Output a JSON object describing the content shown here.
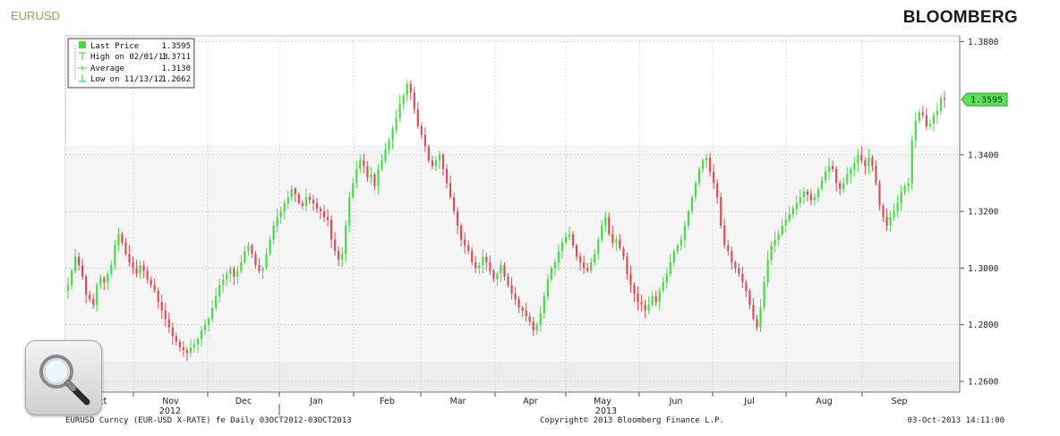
{
  "header": {
    "ticker": "EURUSD",
    "brand": "BLOOMBERG"
  },
  "legend": {
    "rows": [
      {
        "label": "Last Price",
        "value": "1.3595"
      },
      {
        "label": "High on 02/01/13",
        "value": "1.3711"
      },
      {
        "label": "Average",
        "value": "1.3130"
      },
      {
        "label": "Low on 11/13/12",
        "value": "1.2662"
      }
    ]
  },
  "last_price_tag": "1.3595",
  "footer": {
    "left": "EURUSD Curncy (EUR-USD X-RATE) fe  Daily 03OCT2012-03OCT2013",
    "mid": "Copyright© 2013 Bloomberg Finance L.P.",
    "right": "03-Oct-2013 14:11:00"
  },
  "colors": {
    "up": "#4cd84a",
    "down": "#d8505a",
    "accent": "#7ab63a",
    "tag": "#5ee05a"
  },
  "icons": {
    "zoom": "magnifier-icon"
  },
  "chart_data": {
    "type": "line",
    "title": "",
    "xlabel": "",
    "ylabel": "",
    "ylim": [
      1.2562,
      1.382
    ],
    "yticks": [
      "1.3800",
      "1.3400",
      "1.3200",
      "1.3000",
      "1.2800",
      "1.2600"
    ],
    "months": [
      "Oct",
      "Nov",
      "Dec",
      "Jan",
      "Feb",
      "Mar",
      "Apr",
      "May",
      "Jun",
      "Jul",
      "Aug",
      "Sep"
    ],
    "year_labels": [
      "2012",
      "2013"
    ],
    "grid": true,
    "legend_position": "top-left",
    "series": [
      {
        "name": "Last Price",
        "values": [
          1.294,
          1.299,
          1.304,
          1.301,
          1.297,
          1.2905,
          1.289,
          1.287,
          1.294,
          1.2965,
          1.295,
          1.298,
          1.301,
          1.308,
          1.312,
          1.309,
          1.305,
          1.302,
          1.3,
          1.298,
          1.301,
          1.299,
          1.296,
          1.294,
          1.292,
          1.288,
          1.285,
          1.282,
          1.279,
          1.276,
          1.274,
          1.272,
          1.271,
          1.27,
          1.272,
          1.273,
          1.275,
          1.278,
          1.28,
          1.282,
          1.286,
          1.29,
          1.294,
          1.296,
          1.298,
          1.3,
          1.297,
          1.299,
          1.302,
          1.306,
          1.308,
          1.305,
          1.301,
          1.299,
          1.3,
          1.305,
          1.31,
          1.315,
          1.318,
          1.32,
          1.323,
          1.325,
          1.328,
          1.326,
          1.323,
          1.322,
          1.325,
          1.324,
          1.323,
          1.321,
          1.32,
          1.318,
          1.317,
          1.31,
          1.306,
          1.303,
          1.305,
          1.315,
          1.325,
          1.33,
          1.335,
          1.338,
          1.336,
          1.332,
          1.333,
          1.329,
          1.335,
          1.338,
          1.342,
          1.345,
          1.349,
          1.353,
          1.358,
          1.361,
          1.365,
          1.362,
          1.356,
          1.35,
          1.347,
          1.343,
          1.338,
          1.336,
          1.338,
          1.34,
          1.335,
          1.33,
          1.325,
          1.32,
          1.315,
          1.31,
          1.308,
          1.306,
          1.302,
          1.3,
          1.301,
          1.304,
          1.302,
          1.299,
          1.296,
          1.298,
          1.301,
          1.297,
          1.294,
          1.291,
          1.289,
          1.286,
          1.285,
          1.283,
          1.281,
          1.278,
          1.28,
          1.284,
          1.29,
          1.296,
          1.3,
          1.302,
          1.306,
          1.309,
          1.311,
          1.312,
          1.308,
          1.304,
          1.302,
          1.3,
          1.299,
          1.302,
          1.305,
          1.31,
          1.315,
          1.318,
          1.312,
          1.309,
          1.31,
          1.307,
          1.304,
          1.298,
          1.294,
          1.291,
          1.288,
          1.287,
          1.285,
          1.287,
          1.29,
          1.288,
          1.292,
          1.295,
          1.298,
          1.302,
          1.306,
          1.308,
          1.31,
          1.315,
          1.32,
          1.325,
          1.33,
          1.335,
          1.338,
          1.339,
          1.334,
          1.33,
          1.325,
          1.315,
          1.308,
          1.306,
          1.302,
          1.3,
          1.298,
          1.295,
          1.292,
          1.287,
          1.282,
          1.279,
          1.286,
          1.295,
          1.303,
          1.308,
          1.31,
          1.312,
          1.315,
          1.317,
          1.319,
          1.321,
          1.323,
          1.325,
          1.327,
          1.326,
          1.324,
          1.325,
          1.328,
          1.331,
          1.334,
          1.336,
          1.335,
          1.33,
          1.328,
          1.33,
          1.333,
          1.335,
          1.337,
          1.34,
          1.338,
          1.336,
          1.339,
          1.336,
          1.33,
          1.322,
          1.318,
          1.315,
          1.318,
          1.32,
          1.323,
          1.327,
          1.329,
          1.33,
          1.345,
          1.352,
          1.355,
          1.354,
          1.35,
          1.351,
          1.354,
          1.3555,
          1.36,
          1.3595
        ]
      }
    ],
    "annotations": {
      "high": 1.3711,
      "average": 1.313,
      "low": 1.2662,
      "last": 1.3595
    }
  }
}
